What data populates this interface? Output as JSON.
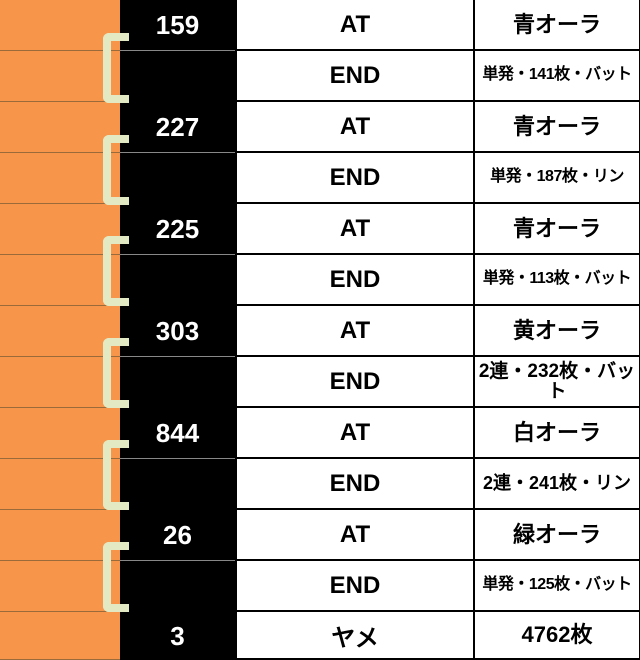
{
  "rows": [
    {
      "count": "159",
      "type": "AT",
      "result": "青オーラ"
    },
    {
      "count": "",
      "type": "END",
      "result": "単発・141枚・バット"
    },
    {
      "count": "227",
      "type": "AT",
      "result": "青オーラ"
    },
    {
      "count": "",
      "type": "END",
      "result": "単発・187枚・リン"
    },
    {
      "count": "225",
      "type": "AT",
      "result": "青オーラ"
    },
    {
      "count": "",
      "type": "END",
      "result": "単発・113枚・バット"
    },
    {
      "count": "303",
      "type": "AT",
      "result": "黄オーラ"
    },
    {
      "count": "",
      "type": "END",
      "result": "2連・232枚・バット"
    },
    {
      "count": "844",
      "type": "AT",
      "result": "白オーラ"
    },
    {
      "count": "",
      "type": "END",
      "result": "2連・241枚・リン"
    },
    {
      "count": "26",
      "type": "AT",
      "result": "緑オーラ"
    },
    {
      "count": "",
      "type": "END",
      "result": "単発・125枚・バット"
    },
    {
      "count": "3",
      "type": "ヤメ",
      "result": "4762枚"
    }
  ],
  "colors": {
    "orange": "#f7954a",
    "bracket": "#e3e9c2",
    "black": "#000000"
  }
}
